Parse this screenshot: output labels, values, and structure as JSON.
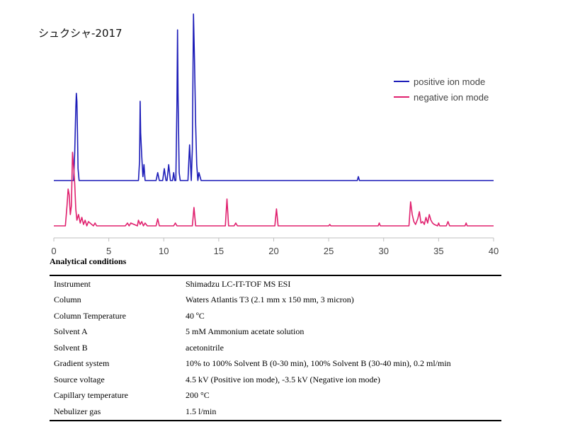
{
  "title": "シュクシャ-2017",
  "legend": [
    {
      "label": "positive ion mode",
      "color": "#1c1cb8"
    },
    {
      "label": "negative ion mode",
      "color": "#e0206e"
    }
  ],
  "chart_data": {
    "type": "line",
    "x_ticks": [
      0,
      5,
      10,
      15,
      20,
      25,
      30,
      35,
      40
    ],
    "xlim": [
      0,
      40
    ],
    "ylim": [
      0,
      100
    ],
    "y_axis_shown": false,
    "grid": false,
    "legend_position": "top-right",
    "series": [
      {
        "name": "positive ion mode",
        "color": "#1c1cb8",
        "baseline": 0,
        "x": [
          0,
          1.8,
          1.9,
          2.0,
          2.05,
          2.1,
          2.15,
          2.2,
          2.3,
          2.4,
          7.7,
          7.8,
          7.85,
          7.9,
          8.0,
          8.1,
          8.2,
          8.3,
          8.4,
          8.5,
          9.3,
          9.45,
          9.6,
          9.9,
          10.05,
          10.2,
          10.3,
          10.45,
          10.6,
          10.8,
          10.9,
          11.0,
          11.1,
          11.2,
          11.25,
          11.3,
          11.4,
          11.5,
          11.6,
          12.2,
          12.35,
          12.5,
          12.6,
          12.7,
          12.8,
          12.9,
          13.0,
          13.1,
          13.2,
          13.4,
          13.5,
          27.6,
          27.7,
          27.8,
          40
        ],
        "y": [
          0,
          0,
          7,
          18,
          22,
          20,
          12,
          3,
          0,
          0,
          0,
          5,
          20,
          12,
          6,
          1,
          4,
          0,
          0,
          0,
          0,
          2,
          0,
          0,
          3,
          0,
          0,
          4,
          0,
          0,
          2,
          0,
          0,
          20,
          38,
          22,
          2,
          0,
          0,
          0,
          9,
          0,
          8,
          42,
          30,
          14,
          4,
          0,
          2,
          0,
          0,
          0,
          1,
          0,
          0
        ]
      },
      {
        "name": "negative ion mode",
        "color": "#e0206e",
        "baseline": 0,
        "x": [
          0,
          1.05,
          1.2,
          1.3,
          1.4,
          1.5,
          1.6,
          1.7,
          1.8,
          1.9,
          2.0,
          2.1,
          2.25,
          2.4,
          2.55,
          2.7,
          2.85,
          3.0,
          3.15,
          3.6,
          3.75,
          3.9,
          6.5,
          6.7,
          6.85,
          7.0,
          7.6,
          7.7,
          7.85,
          8.0,
          8.15,
          8.3,
          8.5,
          9.3,
          9.45,
          9.6,
          10.9,
          11.05,
          11.2,
          12.6,
          12.75,
          12.9,
          15.6,
          15.75,
          15.9,
          16.4,
          16.55,
          16.7,
          20.1,
          20.25,
          20.4,
          25.0,
          25.1,
          25.2,
          29.5,
          29.6,
          29.7,
          32.3,
          32.45,
          32.6,
          32.75,
          32.9,
          33.1,
          33.25,
          33.4,
          33.55,
          33.7,
          33.85,
          34.0,
          34.15,
          34.3,
          34.45,
          34.6,
          34.9,
          35.0,
          35.1,
          35.7,
          35.85,
          36.0,
          37.4,
          37.5,
          37.6,
          40
        ],
        "y": [
          0,
          0,
          14,
          26,
          22,
          8,
          14,
          52,
          42,
          30,
          12,
          4,
          8,
          2,
          6,
          1,
          4,
          0,
          3,
          0,
          2,
          0,
          0,
          2,
          0,
          2,
          0,
          4,
          1,
          3,
          0,
          2,
          0,
          0,
          5,
          0,
          0,
          2,
          0,
          0,
          13,
          0,
          0,
          19,
          0,
          0,
          2,
          0,
          0,
          12,
          0,
          0,
          1,
          0,
          0,
          2,
          0,
          0,
          17,
          8,
          3,
          1,
          5,
          10,
          2,
          3,
          1,
          6,
          2,
          8,
          4,
          2,
          1,
          0,
          2,
          0,
          0,
          3,
          0,
          0,
          2,
          0,
          0
        ]
      }
    ]
  },
  "conditions": {
    "heading": "Analytical conditions",
    "rows": [
      {
        "label": "Instrument",
        "value": "Shimadzu LC-IT-TOF MS ESI"
      },
      {
        "label": "Column",
        "value": "Waters Atlantis T3 (2.1 mm x 150 mm, 3 micron)"
      },
      {
        "label": "Column Temperature",
        "value": "40 ºC"
      },
      {
        "label": "Solvent A",
        "value": "5 mM Ammonium acetate solution"
      },
      {
        "label": "Solvent B",
        "value": "acetonitrile"
      },
      {
        "label": "Gradient system",
        "value": "10% to 100% Solvent B (0-30 min), 100% Solvent B (30-40 min), 0.2 ml/min"
      },
      {
        "label": "Source voltage",
        "value": "4.5 kV (Positive ion mode), -3.5 kV (Negative ion mode)"
      },
      {
        "label": "Capillary temperature",
        "value": "200 °C"
      },
      {
        "label": "Nebulizer gas",
        "value": "1.5 l/min"
      }
    ]
  }
}
